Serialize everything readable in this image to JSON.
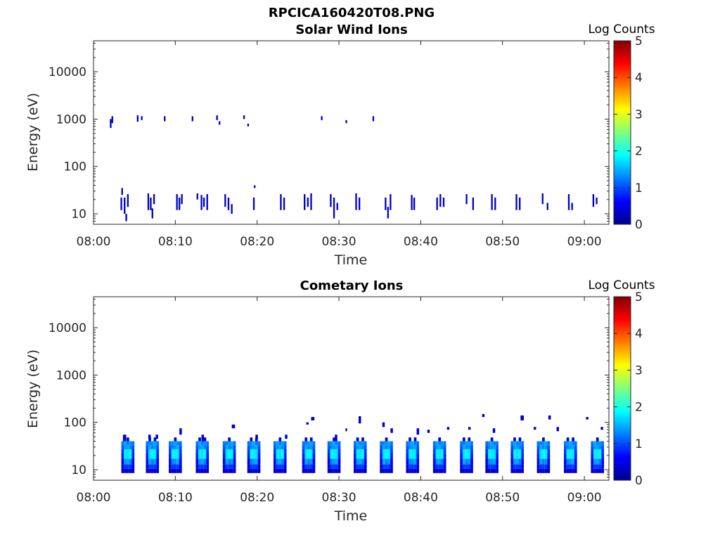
{
  "figure": {
    "title": "RPCICA160420T08.PNG"
  },
  "chart_data": [
    {
      "type": "heatmap",
      "title": "Solar Wind Ions",
      "xlabel": "Time",
      "ylabel": "Energy (eV)",
      "x_tick_labels": [
        "08:00",
        "08:10",
        "08:20",
        "08:30",
        "08:40",
        "08:50",
        "09:00"
      ],
      "x_ticks_min": [
        0,
        10,
        20,
        30,
        40,
        50,
        60
      ],
      "xlim_min": [
        0,
        63
      ],
      "y_scale": "log",
      "y_tick_labels": [
        "10",
        "100",
        "1000",
        "10000"
      ],
      "y_ticks": [
        10,
        100,
        1000,
        10000
      ],
      "ylim": [
        6,
        45000
      ],
      "colorbar": {
        "label": "Log Counts",
        "ticks": [
          0,
          1,
          2,
          3,
          4,
          5
        ],
        "range": [
          0,
          5
        ],
        "colormap": "jet"
      },
      "cells": [
        [
          2.0,
          650,
          1000,
          0.2
        ],
        [
          2.2,
          820,
          1150,
          0.2
        ],
        [
          5.3,
          880,
          1200,
          0.2
        ],
        [
          5.8,
          950,
          1150,
          0.2
        ],
        [
          8.6,
          900,
          1150,
          0.2
        ],
        [
          12.0,
          900,
          1150,
          0.2
        ],
        [
          15.0,
          950,
          1200,
          0.2
        ],
        [
          15.3,
          760,
          900,
          0.2
        ],
        [
          18.3,
          1000,
          1200,
          0.2
        ],
        [
          18.8,
          700,
          800,
          0.2
        ],
        [
          27.8,
          950,
          1150,
          0.2
        ],
        [
          30.8,
          820,
          950,
          0.2
        ],
        [
          34.1,
          900,
          1150,
          0.2
        ],
        [
          19.6,
          35,
          40,
          0.2
        ],
        [
          3.4,
          25,
          35,
          0.2
        ],
        [
          3.3,
          12,
          22,
          0.2
        ],
        [
          3.7,
          10,
          22,
          0.2
        ],
        [
          3.9,
          7,
          10,
          0.2
        ],
        [
          4.1,
          14,
          26,
          0.2
        ],
        [
          6.6,
          12,
          27,
          0.2
        ],
        [
          6.9,
          12,
          22,
          0.2
        ],
        [
          7.1,
          8,
          13,
          0.2
        ],
        [
          7.3,
          16,
          26,
          0.2
        ],
        [
          10.1,
          12,
          26,
          0.2
        ],
        [
          10.4,
          12,
          22,
          0.2
        ],
        [
          10.7,
          16,
          26,
          0.2
        ],
        [
          12.6,
          20,
          27,
          0.2
        ],
        [
          13.1,
          12,
          25,
          0.2
        ],
        [
          13.4,
          14,
          22,
          0.2
        ],
        [
          13.8,
          12,
          26,
          0.2
        ],
        [
          16.0,
          14,
          26,
          0.2
        ],
        [
          16.4,
          12,
          22,
          0.2
        ],
        [
          16.8,
          10,
          16,
          0.2
        ],
        [
          19.5,
          12,
          22,
          0.2
        ],
        [
          22.8,
          12,
          26,
          0.2
        ],
        [
          23.2,
          12,
          22,
          0.2
        ],
        [
          25.7,
          12,
          26,
          0.2
        ],
        [
          26.1,
          14,
          22,
          0.2
        ],
        [
          26.5,
          12,
          27,
          0.2
        ],
        [
          28.9,
          14,
          26,
          0.2
        ],
        [
          29.3,
          8,
          22,
          0.2
        ],
        [
          29.7,
          12,
          17,
          0.2
        ],
        [
          32.0,
          12,
          27,
          0.2
        ],
        [
          32.4,
          12,
          22,
          0.2
        ],
        [
          35.6,
          12,
          22,
          0.2
        ],
        [
          35.9,
          8,
          14,
          0.2
        ],
        [
          36.2,
          12,
          26,
          0.2
        ],
        [
          38.8,
          12,
          25,
          0.2
        ],
        [
          39.1,
          12,
          22,
          0.2
        ],
        [
          41.9,
          12,
          22,
          0.2
        ],
        [
          42.3,
          14,
          26,
          0.2
        ],
        [
          42.7,
          14,
          22,
          0.2
        ],
        [
          45.5,
          16,
          26,
          0.2
        ],
        [
          46.3,
          12,
          22,
          0.2
        ],
        [
          48.6,
          12,
          26,
          0.2
        ],
        [
          49.0,
          12,
          22,
          0.2
        ],
        [
          51.6,
          12,
          26,
          0.2
        ],
        [
          52.0,
          12,
          22,
          0.2
        ],
        [
          54.8,
          16,
          27,
          0.2
        ],
        [
          55.4,
          12,
          17,
          0.2
        ],
        [
          58.0,
          12,
          26,
          0.2
        ],
        [
          58.4,
          12,
          17,
          0.2
        ],
        [
          61.0,
          14,
          26,
          0.2
        ],
        [
          61.4,
          16,
          22,
          0.2
        ]
      ]
    },
    {
      "type": "heatmap",
      "title": "Cometary Ions",
      "xlabel": "Time",
      "ylabel": "Energy (eV)",
      "x_tick_labels": [
        "08:00",
        "08:10",
        "08:20",
        "08:30",
        "08:40",
        "08:50",
        "09:00"
      ],
      "x_ticks_min": [
        0,
        10,
        20,
        30,
        40,
        50,
        60
      ],
      "xlim_min": [
        0,
        63
      ],
      "y_scale": "log",
      "y_tick_labels": [
        "10",
        "100",
        "1000",
        "10000"
      ],
      "y_ticks": [
        10,
        100,
        1000,
        10000
      ],
      "ylim": [
        6,
        45000
      ],
      "colorbar": {
        "label": "Log Counts",
        "ticks": [
          0,
          1,
          2,
          3,
          4,
          5
        ],
        "range": [
          0,
          5
        ],
        "colormap": "jet"
      },
      "bursts_start_min": [
        3.4,
        6.4,
        9.2,
        12.5,
        15.8,
        18.8,
        22.0,
        25.5,
        28.6,
        31.8,
        35.0,
        38.2,
        41.5,
        44.8,
        47.9,
        51.0,
        54.2,
        57.5,
        60.8
      ],
      "sparse_cells": [
        [
          3.6,
          40,
          55,
          0.4
        ],
        [
          6.7,
          45,
          55,
          0.3
        ],
        [
          7.6,
          45,
          55,
          0.3
        ],
        [
          10.5,
          55,
          75,
          0.3
        ],
        [
          13.2,
          40,
          55,
          0.3
        ],
        [
          16.9,
          75,
          90,
          0.4
        ],
        [
          19.8,
          45,
          55,
          0.3
        ],
        [
          23.4,
          45,
          55,
          0.3
        ],
        [
          26.0,
          90,
          100,
          0.3
        ],
        [
          26.6,
          110,
          130,
          0.4
        ],
        [
          29.5,
          40,
          55,
          0.3
        ],
        [
          30.8,
          65,
          75,
          0.2
        ],
        [
          32.4,
          95,
          135,
          0.3
        ],
        [
          35.3,
          80,
          100,
          0.3
        ],
        [
          36.3,
          60,
          75,
          0.3
        ],
        [
          39.5,
          55,
          75,
          0.3
        ],
        [
          40.8,
          60,
          70,
          0.3
        ],
        [
          43.2,
          70,
          80,
          0.3
        ],
        [
          45.8,
          70,
          80,
          0.3
        ],
        [
          47.5,
          130,
          150,
          0.3
        ],
        [
          48.8,
          60,
          75,
          0.3
        ],
        [
          52.2,
          110,
          140,
          0.4
        ],
        [
          53.8,
          70,
          80,
          0.3
        ],
        [
          55.6,
          115,
          140,
          0.3
        ],
        [
          56.6,
          65,
          80,
          0.3
        ],
        [
          60.2,
          115,
          130,
          0.3
        ],
        [
          62.0,
          70,
          80,
          0.3
        ]
      ]
    }
  ]
}
